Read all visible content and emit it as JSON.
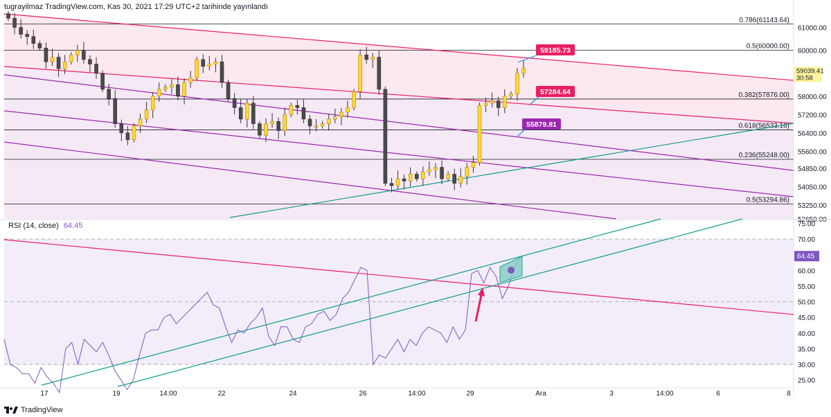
{
  "header": {
    "text": "tugrayilmaz TradingView.com, Kas 30, 2021 17:29 UTC+2 tarihinde yayınlandı"
  },
  "rsi_title": {
    "label": "RSI (14, close)",
    "value": "64.45"
  },
  "footer": {
    "brand": "TradingView"
  },
  "price_badge": {
    "price": "59039.41",
    "countdown": "30:58"
  },
  "rsi_badge": "64.45",
  "callouts": [
    {
      "text": "59185.73",
      "color": "#e91e63"
    },
    {
      "text": "57284.64",
      "color": "#e91e63"
    },
    {
      "text": "55879.81",
      "color": "#9c27b0"
    }
  ],
  "chart_data": [
    {
      "type": "candlestick",
      "title": "",
      "price_axis_ticks": [
        "61000.00",
        "60000.00",
        "58000.00",
        "57200.00",
        "56400.00",
        "55600.00",
        "54850.00",
        "54050.00",
        "53250.00",
        "52650.00"
      ],
      "time_axis_ticks": [
        "17",
        "19",
        "14:00",
        "22",
        "24",
        "26",
        "14:00",
        "29",
        "Ara",
        "3",
        "14:00",
        "6",
        "8"
      ],
      "fib_levels": [
        {
          "label": "0.786(61143.64)",
          "value": 61143.64
        },
        {
          "label": "0.5(60000.00)",
          "value": 60000.0
        },
        {
          "label": "0.382(57876.00)",
          "value": 57876.0
        },
        {
          "label": "0.618(56533.16)",
          "value": 56533.16
        },
        {
          "label": "0.236(55248.00)",
          "value": 55248.0
        },
        {
          "label": "0.5(53294.86)",
          "value": 53294.86
        }
      ],
      "last_price": 59039.41,
      "annotations": [
        "59185.73",
        "57284.64",
        "55879.81"
      ],
      "candles_close": [
        61400,
        61000,
        60700,
        60600,
        60300,
        60100,
        59500,
        59700,
        59200,
        59500,
        59800,
        60000,
        59600,
        59400,
        59000,
        58300,
        57900,
        56800,
        56400,
        56100,
        56700,
        57000,
        57400,
        58000,
        58300,
        58400,
        58500,
        58000,
        58600,
        58800,
        59600,
        59300,
        59400,
        59500,
        58600,
        57900,
        57500,
        57000,
        57700,
        56800,
        56300,
        56800,
        56900,
        56500,
        57200,
        57600,
        57500,
        57000,
        56700,
        56700,
        56800,
        57000,
        57100,
        57300,
        57500,
        58200,
        59800,
        59600,
        59700,
        58300,
        54200,
        54100,
        54400,
        54300,
        54600,
        54400,
        54700,
        54800,
        54900,
        54400,
        54600,
        54200,
        54500,
        54900,
        55100,
        57600,
        57700,
        57800,
        57500,
        58000,
        58100,
        59000,
        59200
      ],
      "ylim": [
        52650,
        61650
      ]
    },
    {
      "type": "line",
      "title": "RSI (14, close)",
      "rsi_axis_ticks": [
        "75.00",
        "70.00",
        "65.00",
        "60.00",
        "55.00",
        "50.00",
        "45.00",
        "40.00",
        "35.00",
        "30.00",
        "25.00"
      ],
      "bands": [
        70,
        50,
        30
      ],
      "values": [
        38,
        30,
        29,
        27,
        27,
        24,
        29,
        26,
        24,
        21,
        35,
        37,
        30,
        38,
        36,
        34,
        37,
        33,
        28,
        25,
        22,
        25,
        33,
        40,
        41,
        41,
        45,
        46,
        43,
        45,
        47,
        49,
        51,
        53,
        49,
        48,
        42,
        37,
        41,
        40,
        43,
        45,
        48,
        39,
        36,
        42,
        42,
        38,
        37,
        42,
        43,
        46,
        47,
        44,
        46,
        51,
        53,
        57,
        61,
        60,
        30,
        33,
        32,
        35,
        38,
        34,
        38,
        36,
        40,
        42,
        41,
        40,
        37,
        42,
        38,
        41,
        59,
        60,
        56,
        61,
        58,
        51,
        55,
        61,
        64.45
      ],
      "ylim": [
        22.5,
        76
      ]
    }
  ]
}
